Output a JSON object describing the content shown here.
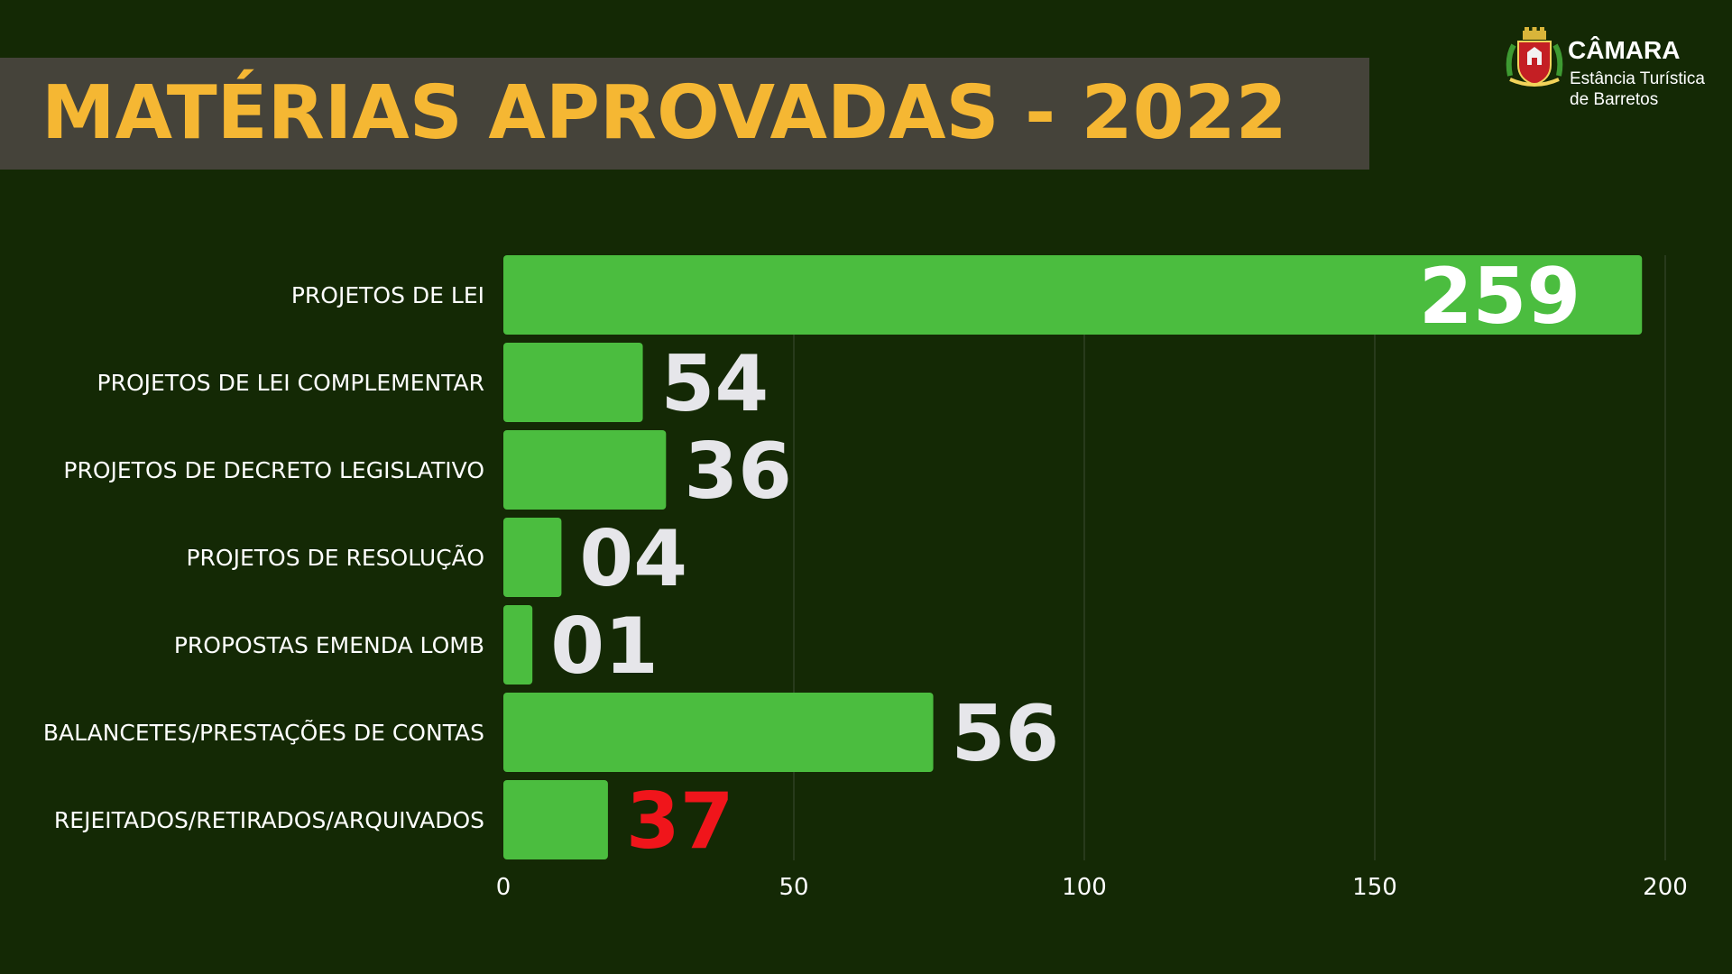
{
  "header": {
    "title": "MATÉRIAS APROVADAS - 2022"
  },
  "logo": {
    "name": "CÂMARA",
    "subtitle_line1": "Estância Turística",
    "subtitle_line2": "de Barretos",
    "emblem": "coat-of-arms"
  },
  "colors": {
    "background": "#142905",
    "title_band": "#45433a",
    "title_text": "#f5b733",
    "bar": "#4bbd3f",
    "value_label": "#e6e6ea",
    "value_label_highlight": "#f0151b",
    "category_label": "#ffffff",
    "gridline": "#3b4a33"
  },
  "chart_data": {
    "type": "bar",
    "orientation": "horizontal",
    "title": "",
    "xlabel": "",
    "ylabel": "",
    "categories": [
      "PROJETOS DE LEI",
      "PROJETOS DE LEI COMPLEMENTAR",
      "PROJETOS DE DECRETO LEGISLATIVO",
      "PROJETOS DE RESOLUÇÃO",
      "PROPOSTAS EMENDA LOMB",
      "BALANCETES/PRESTAÇÕES DE CONTAS",
      "REJEITADOS/RETIRADOS/ARQUIVADOS"
    ],
    "values": [
      259,
      54,
      36,
      4,
      1,
      56,
      37
    ],
    "bar_lengths": [
      196,
      24,
      28,
      10,
      5,
      74,
      18
    ],
    "value_labels": [
      "259",
      "54",
      "36",
      "04",
      "01",
      "56",
      "37"
    ],
    "highlighted_index": 6,
    "xlim": [
      0,
      200
    ],
    "xticks": [
      0,
      50,
      100,
      150,
      200
    ],
    "grid": true,
    "legend": "none"
  }
}
